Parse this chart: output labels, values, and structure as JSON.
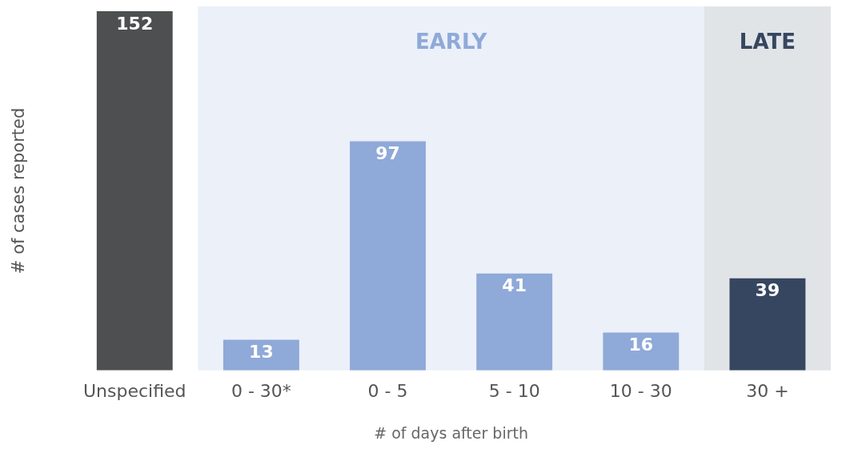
{
  "chart_data": {
    "type": "bar",
    "xlabel": "# of days after birth",
    "ylabel": "# of cases reported",
    "categories": [
      "Unspecified",
      "0 - 30*",
      "0 - 5",
      "5 - 10",
      "10 - 30",
      "30 +"
    ],
    "values": [
      152,
      13,
      97,
      41,
      16,
      39
    ],
    "colors": [
      "#4d4f50",
      "#8fa9d8",
      "#8fa9d8",
      "#8fa9d8",
      "#8fa9d8",
      "#374660"
    ],
    "bands": [
      {
        "axis": "x",
        "from": "0 - 30*",
        "to": "10 - 30",
        "label": "EARLY",
        "color": "#ebf0f9"
      },
      {
        "axis": "x",
        "from": "30 +",
        "to": "30 +",
        "label": "LATE",
        "color": "#e1e4e7"
      }
    ],
    "data_labels": true,
    "grid": false,
    "legend": false
  }
}
